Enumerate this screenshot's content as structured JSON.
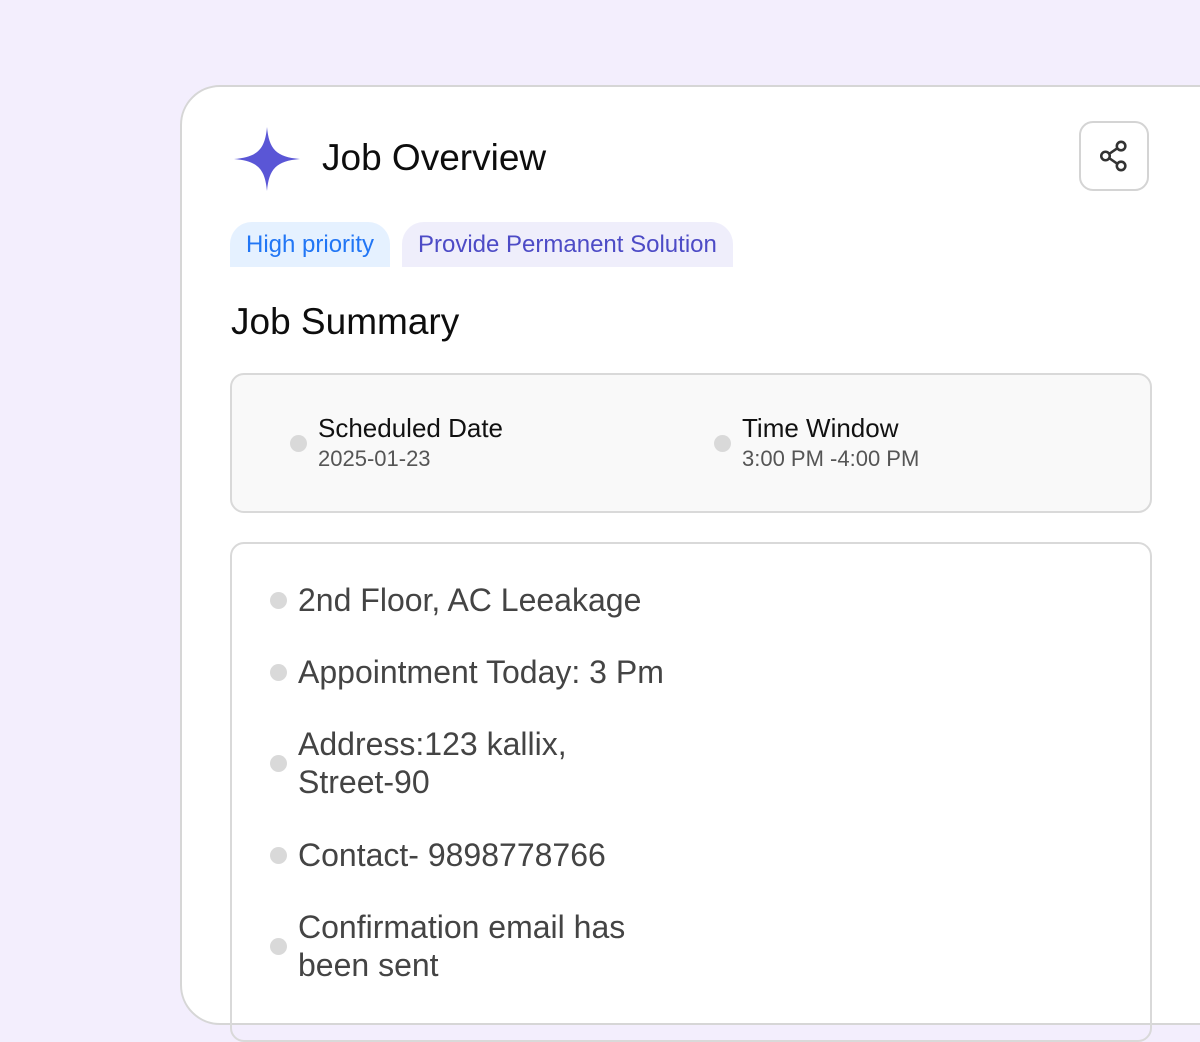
{
  "header": {
    "title": "Job Overview",
    "logo_icon": "sparkle-icon",
    "share_icon": "share-icon",
    "accent": "#5a56d6"
  },
  "tags": [
    {
      "label": "High priority",
      "color": "#2176f5"
    },
    {
      "label": "Provide Permanent Solution",
      "color": "#4d4bc6"
    }
  ],
  "summary": {
    "title": "Job Summary",
    "scheduled_date": {
      "label": "Scheduled Date",
      "value": "2025-01-23"
    },
    "time_window": {
      "label": "Time Window",
      "value": "3:00 PM -4:00 PM"
    }
  },
  "details": [
    "2nd Floor, AC Leeakage",
    "Appointment Today: 3 Pm",
    "Address:123 kallix,\nStreet-90",
    "Contact- 9898778766",
    "Confirmation email has\nbeen sent"
  ]
}
